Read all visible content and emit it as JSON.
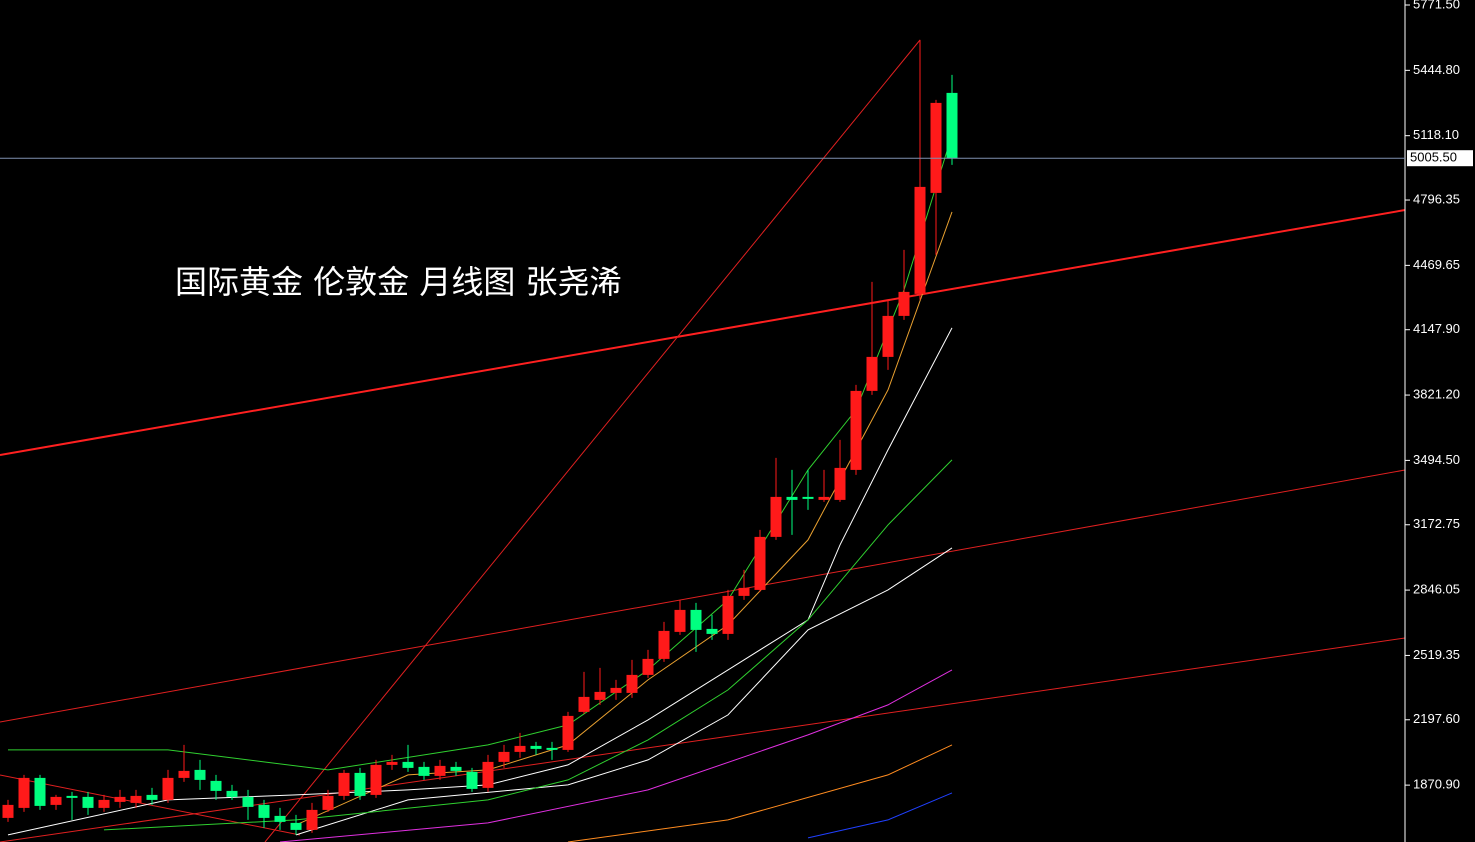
{
  "chart_data": {
    "type": "candlestick",
    "title": "国际黄金  伦敦金  月线图 张尧浠",
    "up_color": "#ff1a1a",
    "down_color": "#00ff80",
    "ylim": [
      1586.5,
      5796.5
    ],
    "yticks": [
      {
        "value": 5771.5,
        "label": "5771.50"
      },
      {
        "value": 5444.8,
        "label": "5444.80"
      },
      {
        "value": 5118.1,
        "label": "5118.10"
      },
      {
        "value": 4796.35,
        "label": "4796.35"
      },
      {
        "value": 4469.65,
        "label": "4469.65"
      },
      {
        "value": 4147.9,
        "label": "4147.90"
      },
      {
        "value": 3821.2,
        "label": "3821.20"
      },
      {
        "value": 3494.5,
        "label": "3494.50"
      },
      {
        "value": 3172.75,
        "label": "3172.75"
      },
      {
        "value": 2846.05,
        "label": "2846.05"
      },
      {
        "value": 2519.35,
        "label": "2519.35"
      },
      {
        "value": 2197.6,
        "label": "2197.60"
      },
      {
        "value": 1870.9,
        "label": "1870.90"
      }
    ],
    "last_price": {
      "value": 5005.5,
      "label": "5005.50"
    },
    "open": [
      1707,
      1757,
      1907,
      1772,
      1817,
      1812,
      1757,
      1787,
      1782,
      1822,
      1797,
      1907,
      1947,
      1892,
      1842,
      1812,
      1772,
      1717,
      1682,
      1647,
      1747,
      1817,
      1932,
      1822,
      1972,
      1987,
      1962,
      1917,
      1962,
      1937,
      1857,
      1987,
      2037,
      2067,
      2057,
      2047,
      2237,
      2297,
      2332,
      2332,
      2422,
      2502,
      2637,
      2747,
      2652,
      2627,
      2817,
      2847,
      3112,
      3312,
      3312,
      3297,
      3297,
      3447,
      3842,
      4012,
      4217,
      4327,
      4832,
      5332
    ],
    "high": [
      1797,
      1922,
      1922,
      1822,
      1837,
      1837,
      1822,
      1847,
      1847,
      1857,
      1947,
      2072,
      1997,
      1922,
      1872,
      1847,
      1797,
      1757,
      1722,
      1782,
      1847,
      1947,
      1957,
      1997,
      2022,
      2072,
      1987,
      1997,
      1987,
      1957,
      2022,
      2072,
      2132,
      2087,
      2087,
      2237,
      2437,
      2457,
      2397,
      2497,
      2547,
      2687,
      2797,
      2782,
      2722,
      2847,
      2947,
      3147,
      3507,
      3447,
      3447,
      3447,
      3597,
      3872,
      4387,
      4297,
      4547,
      5597,
      5297,
      5422
    ],
    "low": [
      1687,
      1737,
      1747,
      1747,
      1697,
      1722,
      1737,
      1757,
      1757,
      1772,
      1782,
      1887,
      1847,
      1797,
      1797,
      1697,
      1657,
      1647,
      1622,
      1632,
      1737,
      1797,
      1797,
      1807,
      1947,
      1937,
      1897,
      1897,
      1917,
      1837,
      1837,
      1957,
      2007,
      2022,
      1997,
      2037,
      2227,
      2272,
      2297,
      2307,
      2407,
      2487,
      2622,
      2537,
      2597,
      2597,
      2797,
      2837,
      3097,
      3122,
      3247,
      3287,
      3287,
      3422,
      3822,
      3947,
      4197,
      4297,
      4522,
      4972
    ],
    "close": [
      1772,
      1907,
      1767,
      1812,
      1807,
      1757,
      1797,
      1812,
      1817,
      1797,
      1907,
      1942,
      1897,
      1842,
      1812,
      1762,
      1707,
      1687,
      1647,
      1747,
      1817,
      1932,
      1817,
      1972,
      1987,
      1957,
      1917,
      1967,
      1942,
      1852,
      1987,
      2037,
      2067,
      2052,
      2047,
      2217,
      2312,
      2337,
      2357,
      2422,
      2502,
      2642,
      2747,
      2647,
      2627,
      2817,
      2857,
      3112,
      3312,
      3297,
      3302,
      3312,
      3457,
      3842,
      4012,
      4217,
      4337,
      4862,
      5282,
      5005.5
    ],
    "series": [
      {
        "color": "#e8a030",
        "x": [
          18,
          25,
          30,
          35,
          40,
          45,
          50,
          55,
          59
        ],
        "values": [
          1672,
          1922,
          1947,
          2072,
          2397,
          2672,
          3097,
          3847,
          4737
        ]
      },
      {
        "color": "#ffffff",
        "x": [
          0,
          10,
          18,
          25,
          30,
          35,
          40,
          45,
          50,
          52,
          55,
          59
        ],
        "values": [
          1622,
          1797,
          1822,
          1847,
          1872,
          1972,
          2197,
          2447,
          2697,
          3072,
          3547,
          4157
        ]
      },
      {
        "color": "#ffffff",
        "x": [
          18,
          25,
          35,
          40,
          45,
          50,
          55,
          59
        ],
        "values": [
          1622,
          1797,
          1872,
          1997,
          2222,
          2647,
          2847,
          3057
        ]
      },
      {
        "color": "#30d030",
        "x": [
          0,
          10,
          20,
          30,
          35,
          40,
          45,
          50,
          53,
          56,
          59
        ],
        "values": [
          2047,
          2047,
          1947,
          2072,
          2172,
          2447,
          2797,
          3447,
          3747,
          4347,
          5122
        ]
      },
      {
        "color": "#30d030",
        "x": [
          6,
          18,
          30,
          35,
          40,
          45,
          50,
          55,
          59
        ],
        "values": [
          1647,
          1697,
          1797,
          1897,
          2097,
          2347,
          2697,
          3172,
          3497
        ]
      },
      {
        "color": "#e030e0",
        "x": [
          17,
          30,
          40,
          50,
          55,
          59
        ],
        "values": [
          1586.5,
          1682,
          1847,
          2122,
          2272,
          2447
        ]
      },
      {
        "color": "#ff8c20",
        "x": [
          35,
          45,
          55,
          59
        ],
        "values": [
          1586.5,
          1697,
          1922,
          2072
        ]
      },
      {
        "color": "#2040ff",
        "x": [
          50,
          55,
          59
        ],
        "values": [
          1607,
          1697,
          1832
        ]
      }
    ]
  }
}
